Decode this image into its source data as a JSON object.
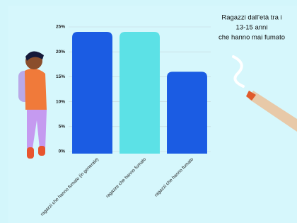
{
  "chart_data": {
    "type": "bar",
    "title": [
      "Ragazzi dall'età tra i",
      "13-15 anni",
      "che hanno mai fumato"
    ],
    "categories": [
      "ragazzi che hanno fumato (in generale)",
      "ragazze che hanno fumato",
      "ragazzi che hanno fumato"
    ],
    "values": [
      24,
      24,
      16
    ],
    "colors": [
      "#1b5ce3",
      "#5ce1e6",
      "#1b5ce3"
    ],
    "ylim": [
      0,
      25
    ],
    "yticks": [
      {
        "value": 0,
        "label": "0%"
      },
      {
        "value": 5,
        "label": "5%"
      },
      {
        "value": 10,
        "label": "10%"
      },
      {
        "value": 15,
        "label": "15%"
      },
      {
        "value": 20,
        "label": "20%"
      },
      {
        "value": 25,
        "label": "25%"
      }
    ],
    "grid": true
  }
}
